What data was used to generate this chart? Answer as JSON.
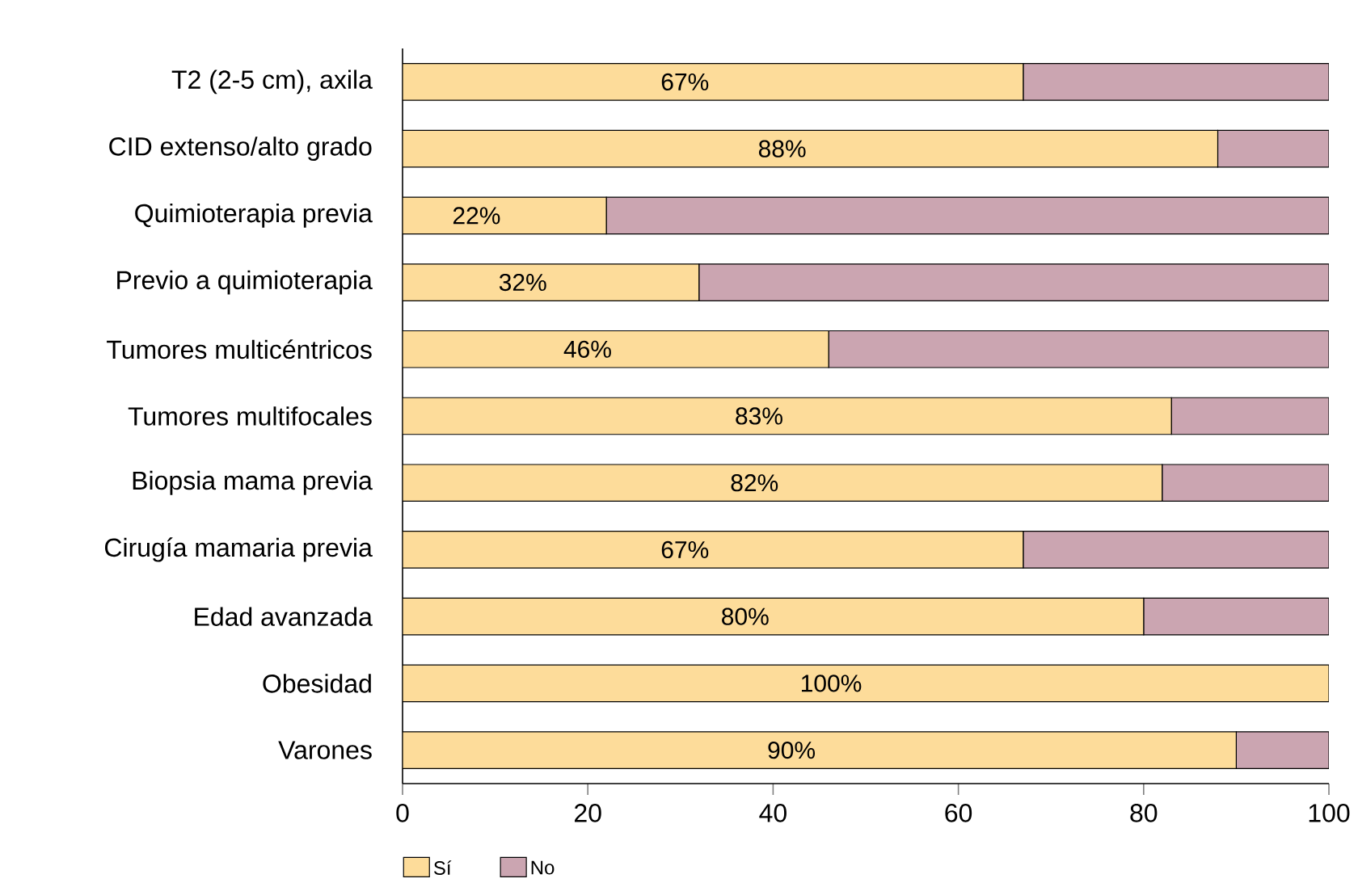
{
  "chart_data": {
    "type": "bar",
    "orientation": "horizontal",
    "stacked": true,
    "categories": [
      "T2 (2-5 cm), axila",
      "CID extenso/alto grado",
      "Quimioterapia previa",
      "Previo a quimioterapia",
      "Tumores multicéntricos",
      "Tumores multifocales",
      "Biopsia mama previa",
      "Cirugía mamaria previa",
      "Edad avanzada",
      "Obesidad",
      "Varones"
    ],
    "series": [
      {
        "name": "Sí",
        "color": "#fddc9a",
        "values": [
          67,
          88,
          22,
          32,
          46,
          83,
          82,
          67,
          80,
          100,
          90
        ],
        "value_labels": [
          "67%",
          "88%",
          "22%",
          "32%",
          "46%",
          "83%",
          "82%",
          "67%",
          "80%",
          "100%",
          "90%"
        ]
      },
      {
        "name": "No",
        "color": "#cba5b1",
        "values": [
          33,
          12,
          78,
          68,
          54,
          17,
          18,
          33,
          20,
          0,
          10
        ]
      }
    ],
    "xlim": [
      0,
      100
    ],
    "xticks": [
      0,
      20,
      40,
      60,
      80,
      100
    ],
    "legend": "bottom left"
  }
}
